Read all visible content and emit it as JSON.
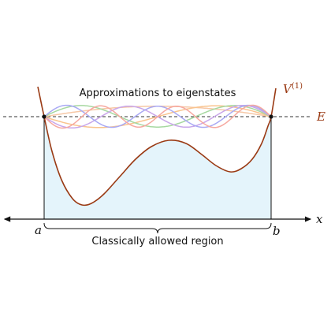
{
  "diagram": {
    "title": "Approximations to eigenstates",
    "region_label": "Classically allowed region",
    "energy_label": "E",
    "x_axis_label": "x",
    "left_turning_point": "a",
    "right_turning_point": "b",
    "potential_label": "V",
    "potential_superscript": "(1)"
  },
  "colors": {
    "potential": "#9a3a14",
    "region_fill": "#e4f4fb",
    "axis": "#111111",
    "energy_line": "#333333",
    "wave_1": "#f6c8a6",
    "wave_2": "#f9c48e",
    "wave_3": "#a6d8a0",
    "wave_4": "#c9a6ea",
    "wave_5": "#a9a9f4",
    "wave_6": "#f6a8a0"
  }
}
